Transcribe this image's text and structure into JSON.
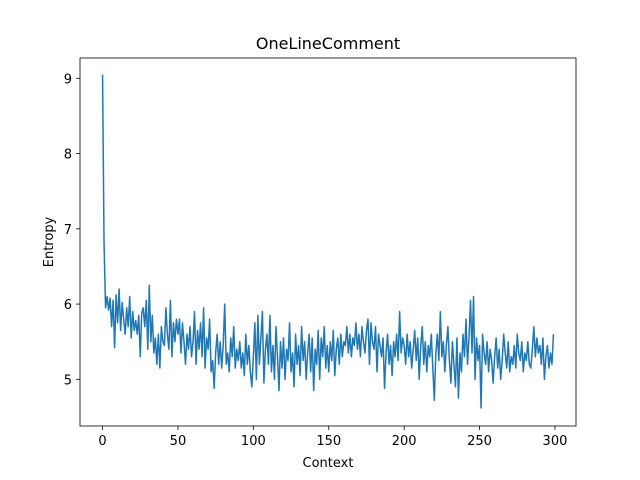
{
  "chart_data": {
    "type": "line",
    "title": "OneLineComment",
    "x_label": "Context",
    "y_label": "Entropy",
    "xlim": [
      -14.95,
      313.95
    ],
    "ylim": [
      4.38,
      9.27
    ],
    "xticks": [
      0,
      50,
      100,
      150,
      200,
      250,
      300
    ],
    "yticks": [
      5,
      6,
      7,
      8,
      9
    ],
    "grid": false,
    "x": [
      0,
      1,
      2,
      3,
      4,
      5,
      6,
      7,
      8,
      9,
      10,
      11,
      12,
      13,
      14,
      15,
      16,
      17,
      18,
      19,
      20,
      21,
      22,
      23,
      24,
      25,
      26,
      27,
      28,
      29,
      30,
      31,
      32,
      33,
      34,
      35,
      36,
      37,
      38,
      39,
      40,
      41,
      42,
      43,
      44,
      45,
      46,
      47,
      48,
      49,
      50,
      51,
      52,
      53,
      54,
      55,
      56,
      57,
      58,
      59,
      60,
      61,
      62,
      63,
      64,
      65,
      66,
      67,
      68,
      69,
      70,
      71,
      72,
      73,
      74,
      75,
      76,
      77,
      78,
      79,
      80,
      81,
      82,
      83,
      84,
      85,
      86,
      87,
      88,
      89,
      90,
      91,
      92,
      93,
      94,
      95,
      96,
      97,
      98,
      99,
      100,
      101,
      102,
      103,
      104,
      105,
      106,
      107,
      108,
      109,
      110,
      111,
      112,
      113,
      114,
      115,
      116,
      117,
      118,
      119,
      120,
      121,
      122,
      123,
      124,
      125,
      126,
      127,
      128,
      129,
      130,
      131,
      132,
      133,
      134,
      135,
      136,
      137,
      138,
      139,
      140,
      141,
      142,
      143,
      144,
      145,
      146,
      147,
      148,
      149,
      150,
      151,
      152,
      153,
      154,
      155,
      156,
      157,
      158,
      159,
      160,
      161,
      162,
      163,
      164,
      165,
      166,
      167,
      168,
      169,
      170,
      171,
      172,
      173,
      174,
      175,
      176,
      177,
      178,
      179,
      180,
      181,
      182,
      183,
      184,
      185,
      186,
      187,
      188,
      189,
      190,
      191,
      192,
      193,
      194,
      195,
      196,
      197,
      198,
      199,
      200,
      201,
      202,
      203,
      204,
      205,
      206,
      207,
      208,
      209,
      210,
      211,
      212,
      213,
      214,
      215,
      216,
      217,
      218,
      219,
      220,
      221,
      222,
      223,
      224,
      225,
      226,
      227,
      228,
      229,
      230,
      231,
      232,
      233,
      234,
      235,
      236,
      237,
      238,
      239,
      240,
      241,
      242,
      243,
      244,
      245,
      246,
      247,
      248,
      249,
      250,
      251,
      252,
      253,
      254,
      255,
      256,
      257,
      258,
      259,
      260,
      261,
      262,
      263,
      264,
      265,
      266,
      267,
      268,
      269,
      270,
      271,
      272,
      273,
      274,
      275,
      276,
      277,
      278,
      279,
      280,
      281,
      282,
      283,
      284,
      285,
      286,
      287,
      288,
      289,
      290,
      291,
      292,
      293,
      294,
      295,
      296,
      297,
      298,
      299
    ],
    "series": [
      {
        "color": "#1f77b4",
        "values": [
          9.05,
          6.8,
          5.95,
          6.1,
          5.92,
          6.08,
          5.7,
          6.05,
          5.42,
          6.12,
          5.75,
          6.2,
          5.65,
          6.02,
          5.8,
          5.6,
          5.95,
          5.7,
          6.1,
          5.55,
          5.9,
          5.65,
          5.78,
          5.6,
          5.85,
          5.3,
          5.88,
          5.95,
          5.7,
          6.05,
          5.4,
          6.25,
          5.5,
          5.85,
          5.35,
          5.55,
          5.2,
          5.6,
          5.15,
          5.7,
          5.5,
          5.45,
          5.95,
          5.6,
          5.4,
          6.05,
          5.3,
          5.75,
          5.5,
          5.8,
          5.6,
          5.8,
          5.35,
          5.75,
          5.5,
          5.2,
          5.6,
          5.4,
          5.7,
          5.3,
          5.5,
          5.9,
          5.2,
          5.65,
          5.4,
          5.75,
          5.3,
          5.95,
          5.15,
          5.55,
          5.4,
          5.8,
          5.1,
          5.25,
          4.88,
          5.35,
          5.6,
          5.2,
          5.5,
          5.15,
          5.45,
          6.0,
          5.2,
          5.35,
          5.1,
          5.55,
          5.3,
          5.7,
          5.15,
          5.4,
          5.25,
          5.5,
          5.15,
          5.35,
          5.05,
          5.6,
          5.2,
          5.45,
          5.1,
          4.9,
          5.3,
          5.75,
          5.0,
          5.85,
          5.2,
          5.55,
          5.9,
          4.95,
          5.4,
          5.6,
          5.2,
          5.85,
          5.1,
          5.45,
          5.0,
          5.7,
          5.3,
          4.85,
          5.5,
          5.15,
          5.55,
          5.0,
          5.4,
          5.25,
          5.75,
          5.1,
          5.35,
          4.9,
          5.6,
          5.2,
          5.45,
          5.05,
          5.7,
          5.25,
          5.5,
          5.0,
          5.35,
          5.6,
          5.1,
          5.55,
          4.85,
          5.4,
          5.2,
          5.65,
          5.0,
          5.55,
          5.3,
          5.7,
          5.15,
          5.45,
          5.1,
          5.5,
          5.25,
          5.65,
          5.05,
          5.4,
          5.55,
          5.2,
          5.6,
          5.3,
          5.5,
          5.45,
          5.7,
          5.35,
          5.6,
          5.3,
          5.55,
          5.45,
          5.75,
          5.4,
          5.6,
          5.3,
          5.7,
          5.5,
          5.35,
          5.65,
          5.8,
          5.2,
          5.75,
          5.5,
          5.4,
          5.7,
          5.1,
          5.6,
          5.45,
          5.3,
          5.55,
          4.88,
          5.35,
          5.6,
          5.2,
          5.45,
          5.05,
          5.5,
          5.3,
          5.6,
          5.25,
          5.9,
          5.35,
          5.55,
          5.45,
          5.2,
          5.6,
          5.3,
          5.5,
          5.15,
          5.4,
          5.65,
          5.25,
          5.55,
          5.0,
          5.45,
          5.7,
          5.2,
          5.5,
          5.1,
          5.45,
          5.3,
          5.6,
          5.15,
          4.72,
          5.35,
          5.6,
          5.25,
          5.9,
          5.3,
          5.5,
          5.1,
          5.45,
          5.7,
          5.25,
          4.95,
          5.5,
          5.2,
          4.9,
          5.55,
          4.75,
          5.35,
          5.1,
          5.6,
          5.3,
          5.8,
          5.2,
          5.55,
          6.05,
          5.35,
          6.1,
          5.0,
          5.55,
          5.25,
          5.45,
          4.62,
          5.6,
          5.35,
          5.2,
          5.5,
          5.1,
          5.4,
          5.25,
          4.95,
          5.3,
          5.55,
          5.15,
          5.4,
          5.0,
          5.25,
          5.6,
          5.35,
          5.15,
          5.5,
          5.1,
          5.3,
          5.2,
          5.45,
          5.15,
          5.6,
          5.35,
          5.25,
          5.5,
          5.1,
          5.35,
          5.25,
          5.5,
          5.2,
          5.15,
          5.4,
          5.7,
          5.3,
          5.55,
          5.35,
          5.45,
          5.2,
          5.55,
          5.0,
          5.3,
          5.45,
          5.15,
          5.35,
          5.2,
          5.6
        ]
      }
    ]
  }
}
